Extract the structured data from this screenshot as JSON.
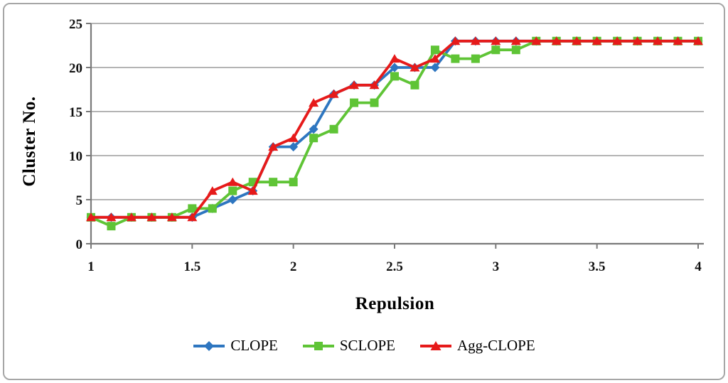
{
  "chart_data": {
    "type": "line",
    "xlabel": "Repulsion",
    "ylabel": "Cluster No.",
    "xlim": [
      1,
      4
    ],
    "ylim": [
      0,
      25
    ],
    "grid": "horizontal",
    "legend_position": "bottom",
    "xticks": [
      1,
      1.5,
      2,
      2.5,
      3,
      3.5,
      4
    ],
    "xtick_labels": [
      "1",
      "1.5",
      "2",
      "2.5",
      "3",
      "3.5",
      "4"
    ],
    "yticks": [
      0,
      5,
      10,
      15,
      20,
      25
    ],
    "ytick_labels": [
      "0",
      "5",
      "10",
      "15",
      "20",
      "25"
    ],
    "x": [
      1.0,
      1.1,
      1.2,
      1.3,
      1.4,
      1.5,
      1.6,
      1.7,
      1.8,
      1.9,
      2.0,
      2.1,
      2.2,
      2.3,
      2.4,
      2.5,
      2.6,
      2.7,
      2.8,
      2.9,
      3.0,
      3.1,
      3.2,
      3.3,
      3.4,
      3.5,
      3.6,
      3.7,
      3.8,
      3.9,
      4.0
    ],
    "series": [
      {
        "name": "CLOPE",
        "color": "#2E76C0",
        "marker": "diamond",
        "values": [
          3,
          3,
          3,
          3,
          3,
          3,
          4,
          5,
          6,
          11,
          11,
          13,
          17,
          18,
          18,
          20,
          20,
          20,
          23,
          23,
          23,
          23,
          23,
          23,
          23,
          23,
          23,
          23,
          23,
          23,
          23
        ]
      },
      {
        "name": "SCLOPE",
        "color": "#5FC436",
        "marker": "square",
        "values": [
          3,
          2,
          3,
          3,
          3,
          4,
          4,
          6,
          7,
          7,
          7,
          12,
          13,
          16,
          16,
          19,
          18,
          22,
          21,
          21,
          22,
          22,
          23,
          23,
          23,
          23,
          23,
          23,
          23,
          23,
          23
        ]
      },
      {
        "name": "Agg-CLOPE",
        "color": "#E61A1A",
        "marker": "triangle",
        "values": [
          3,
          3,
          3,
          3,
          3,
          3,
          6,
          7,
          6,
          11,
          12,
          16,
          17,
          18,
          18,
          21,
          20,
          21,
          23,
          23,
          23,
          23,
          23,
          23,
          23,
          23,
          23,
          23,
          23,
          23,
          23
        ]
      }
    ],
    "style": {
      "grid_color": "#9b9b9b",
      "axis_color": "#7a7a7a",
      "tick_label_color": "#111111"
    }
  }
}
